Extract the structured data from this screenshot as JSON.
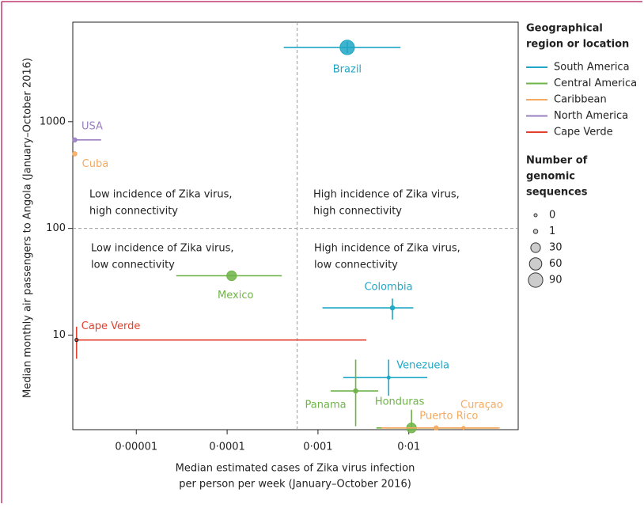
{
  "chart_data": {
    "type": "scatter",
    "ylabel": "Median monthly air passengers to Angola (January–October 2016)",
    "xlabel": [
      "Median estimated cases of Zika virus infection",
      "per person per week (January–October 2016)"
    ],
    "xscale": "log",
    "yscale": "log",
    "xlim": [
      2e-06,
      0.16
    ],
    "ylim": [
      1.3,
      8570
    ],
    "xticks": [
      {
        "value": 1e-05,
        "label": "0·00001"
      },
      {
        "value": 0.0001,
        "label": "0·0001"
      },
      {
        "value": 0.001,
        "label": "0·001"
      },
      {
        "value": 0.01,
        "label": "0·01"
      }
    ],
    "yticks": [
      10,
      100,
      1000
    ],
    "thresholds": {
      "x": 0.00059,
      "y": 100
    },
    "annotations": [
      [
        "Low incidence of Zika virus,",
        "high connectivity"
      ],
      [
        "High incidence of Zika virus,",
        "high connectivity"
      ],
      [
        "Low incidence of Zika virus,",
        "low connectivity"
      ],
      [
        "High incidence of Zika virus,",
        "low connectivity"
      ]
    ],
    "legend_title": [
      "Geographical",
      "region or location"
    ],
    "size_title": [
      "Number of",
      "genomic",
      "sequences"
    ],
    "size_legend": [
      0,
      1,
      30,
      60,
      90
    ],
    "series": [
      {
        "name": "South America",
        "color": "#1ea7c6",
        "labels": [
          "Brazil",
          "Colombia",
          "Venezuela"
        ],
        "x": [
          0.0021,
          0.0066,
          0.006
        ],
        "values": [
          4970,
          18,
          4
        ],
        "sizes": [
          90,
          1,
          0
        ],
        "x_low": [
          0.00042,
          0.00112,
          0.0019
        ],
        "x_high": [
          0.0081,
          0.0112,
          0.016
        ],
        "y_low": [
          4400,
          14,
          2.7
        ],
        "y_high": [
          5600,
          22,
          5.9
        ]
      },
      {
        "name": "Central America",
        "color": "#6db446",
        "labels": [
          "Mexico",
          "Panama",
          "Honduras"
        ],
        "x": [
          0.000112,
          0.0026,
          0.0107
        ],
        "values": [
          36,
          3,
          1.35
        ],
        "sizes": [
          30,
          1,
          30
        ],
        "x_low": [
          2.75e-05,
          0.00138,
          0.0044
        ],
        "x_high": [
          0.0004,
          0.0046,
          0.095
        ],
        "y_low": [
          null,
          1.4,
          1.35
        ],
        "y_high": [
          null,
          5.9,
          2
        ]
      },
      {
        "name": "Caribbean",
        "color": "#f5a95e",
        "labels": [
          "Cuba",
          "Puerto Rico",
          "Curaçao"
        ],
        "x": [
          2.1e-06,
          0.02,
          0.04
        ],
        "values": [
          500,
          1.35,
          1.35
        ],
        "sizes": [
          1,
          1,
          0
        ],
        "x_low": [
          null,
          0.005,
          0.03
        ],
        "x_high": [
          null,
          0.095,
          0.1
        ],
        "y_low": [
          null,
          null,
          null
        ],
        "y_high": [
          null,
          null,
          null
        ]
      },
      {
        "name": "North America",
        "color": "#9a7fc2",
        "labels": [
          "USA"
        ],
        "x": [
          2.1e-06
        ],
        "values": [
          675
        ],
        "sizes": [
          1
        ],
        "x_low": [
          2.1e-06
        ],
        "x_high": [
          4.1e-06
        ],
        "y_low": [
          null
        ],
        "y_high": [
          null
        ]
      },
      {
        "name": "Cape Verde",
        "color": "#e2412e",
        "labels": [
          "Cape Verde"
        ],
        "x": [
          2.2e-06
        ],
        "values": [
          9
        ],
        "sizes": [
          0
        ],
        "x_low": [
          2.2e-06
        ],
        "x_high": [
          0.0034
        ],
        "y_low": [
          6
        ],
        "y_high": [
          12
        ]
      }
    ]
  }
}
